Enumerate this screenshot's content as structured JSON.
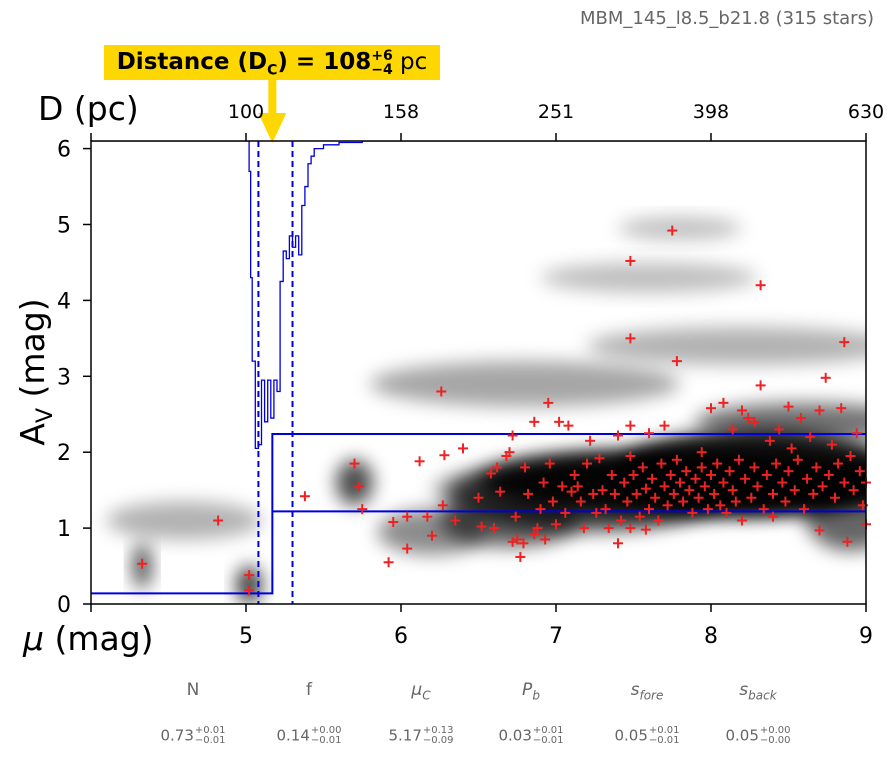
{
  "subtitle": "MBM_145_l8.5_b21.8 (315 stars)",
  "banner": {
    "prefix": "Distance (D",
    "sub": "C",
    "equals": ") = ",
    "value": "108",
    "plus": "+6",
    "minus": "−4",
    "unit": "pc",
    "color": "#FFD700"
  },
  "chart_data": {
    "type": "scatter",
    "xlabel": "μ (mag)",
    "ylabel": "A_V (mag)",
    "top_axis_label": "D (pc)",
    "xlim": [
      4.0,
      9.0
    ],
    "ylim": [
      0.0,
      6.1
    ],
    "x_ticks": [
      "5",
      "6",
      "7",
      "8",
      "9"
    ],
    "y_ticks": [
      "0",
      "1",
      "2",
      "3",
      "4",
      "5",
      "6"
    ],
    "top_ticks": [
      {
        "mu": 5.0,
        "label": "100"
      },
      {
        "mu": 6.0,
        "label": "158"
      },
      {
        "mu": 7.0,
        "label": "251"
      },
      {
        "mu": 8.0,
        "label": "398"
      },
      {
        "mu": 9.0,
        "label": "630"
      }
    ],
    "colors": {
      "stars": "#ee2222",
      "model": "#0000dd",
      "density": "#000000"
    },
    "model_line": {
      "x": [
        4.0,
        5.17,
        5.17,
        9.0
      ],
      "y": [
        0.14,
        0.14,
        2.24,
        2.24
      ],
      "lower_y": 1.22
    },
    "distance_markers": {
      "mu_c": 5.17,
      "mu_low": 5.08,
      "mu_high": 5.3
    },
    "stars": [
      [
        4.33,
        0.53
      ],
      [
        4.82,
        1.1
      ],
      [
        5.02,
        0.38
      ],
      [
        5.02,
        0.18
      ],
      [
        5.38,
        1.42
      ],
      [
        5.7,
        1.85
      ],
      [
        5.73,
        1.55
      ],
      [
        5.75,
        1.25
      ],
      [
        5.92,
        0.55
      ],
      [
        5.95,
        1.08
      ],
      [
        6.04,
        0.73
      ],
      [
        6.04,
        1.15
      ],
      [
        6.12,
        1.88
      ],
      [
        6.17,
        1.15
      ],
      [
        6.2,
        0.9
      ],
      [
        6.26,
        2.8
      ],
      [
        6.27,
        1.3
      ],
      [
        6.28,
        1.96
      ],
      [
        6.35,
        1.1
      ],
      [
        6.4,
        2.05
      ],
      [
        6.5,
        1.4
      ],
      [
        6.52,
        1.02
      ],
      [
        6.58,
        1.72
      ],
      [
        6.6,
        1.0
      ],
      [
        6.62,
        1.8
      ],
      [
        6.64,
        1.48
      ],
      [
        6.68,
        1.95
      ],
      [
        6.7,
        2.0
      ],
      [
        6.72,
        0.82
      ],
      [
        6.72,
        2.22
      ],
      [
        6.74,
        1.15
      ],
      [
        6.75,
        0.85
      ],
      [
        6.77,
        0.62
      ],
      [
        6.79,
        0.8
      ],
      [
        6.8,
        1.8
      ],
      [
        6.82,
        1.45
      ],
      [
        6.86,
        2.4
      ],
      [
        6.88,
        1.0
      ],
      [
        6.9,
        1.25
      ],
      [
        6.92,
        1.6
      ],
      [
        6.93,
        0.85
      ],
      [
        6.95,
        2.65
      ],
      [
        6.96,
        1.85
      ],
      [
        6.98,
        1.35
      ],
      [
        7.0,
        1.05
      ],
      [
        7.02,
        2.4
      ],
      [
        7.04,
        1.55
      ],
      [
        7.06,
        1.2
      ],
      [
        7.08,
        2.35
      ],
      [
        7.1,
        1.48
      ],
      [
        7.12,
        1.7
      ],
      [
        7.14,
        1.55
      ],
      [
        7.16,
        1.35
      ],
      [
        7.18,
        1.0
      ],
      [
        7.2,
        1.85
      ],
      [
        7.22,
        2.15
      ],
      [
        7.24,
        1.45
      ],
      [
        7.26,
        1.2
      ],
      [
        7.28,
        1.92
      ],
      [
        7.3,
        1.5
      ],
      [
        7.32,
        1.25
      ],
      [
        7.34,
        1.0
      ],
      [
        7.36,
        1.7
      ],
      [
        7.38,
        1.45
      ],
      [
        7.4,
        0.8
      ],
      [
        7.4,
        2.22
      ],
      [
        7.42,
        1.1
      ],
      [
        7.44,
        1.6
      ],
      [
        7.46,
        1.35
      ],
      [
        7.48,
        1.0
      ],
      [
        7.48,
        1.95
      ],
      [
        7.48,
        2.35
      ],
      [
        7.48,
        4.52
      ],
      [
        7.48,
        3.5
      ],
      [
        7.5,
        1.7
      ],
      [
        7.52,
        1.45
      ],
      [
        7.54,
        1.15
      ],
      [
        7.56,
        1.8
      ],
      [
        7.58,
        1.52
      ],
      [
        7.6,
        2.25
      ],
      [
        7.6,
        1.25
      ],
      [
        7.62,
        1.65
      ],
      [
        7.64,
        1.4
      ],
      [
        7.66,
        1.1
      ],
      [
        7.68,
        1.85
      ],
      [
        7.7,
        1.55
      ],
      [
        7.7,
        2.35
      ],
      [
        7.72,
        1.3
      ],
      [
        7.74,
        1.7
      ],
      [
        7.75,
        4.92
      ],
      [
        7.76,
        1.45
      ],
      [
        7.78,
        3.2
      ],
      [
        7.78,
        1.9
      ],
      [
        7.8,
        1.6
      ],
      [
        7.82,
        1.35
      ],
      [
        7.84,
        1.75
      ],
      [
        7.86,
        1.5
      ],
      [
        7.88,
        1.2
      ],
      [
        7.9,
        1.65
      ],
      [
        7.92,
        1.4
      ],
      [
        7.94,
        1.8
      ],
      [
        7.96,
        1.55
      ],
      [
        7.98,
        1.25
      ],
      [
        8.0,
        2.58
      ],
      [
        8.0,
        1.7
      ],
      [
        8.02,
        1.45
      ],
      [
        8.04,
        1.85
      ],
      [
        8.06,
        1.3
      ],
      [
        8.08,
        2.65
      ],
      [
        8.08,
        1.6
      ],
      [
        8.1,
        1.2
      ],
      [
        8.12,
        1.75
      ],
      [
        8.14,
        1.5
      ],
      [
        8.16,
        1.35
      ],
      [
        8.18,
        1.9
      ],
      [
        8.2,
        1.1
      ],
      [
        8.2,
        2.55
      ],
      [
        8.22,
        1.65
      ],
      [
        8.24,
        2.45
      ],
      [
        8.26,
        1.4
      ],
      [
        8.28,
        2.4
      ],
      [
        8.28,
        1.8
      ],
      [
        8.3,
        1.55
      ],
      [
        8.32,
        2.88
      ],
      [
        8.32,
        4.2
      ],
      [
        8.34,
        1.25
      ],
      [
        8.36,
        1.7
      ],
      [
        8.38,
        2.15
      ],
      [
        8.4,
        1.45
      ],
      [
        8.42,
        1.85
      ],
      [
        8.44,
        2.3
      ],
      [
        8.46,
        1.6
      ],
      [
        8.48,
        1.35
      ],
      [
        8.5,
        2.6
      ],
      [
        8.5,
        1.75
      ],
      [
        8.52,
        2.05
      ],
      [
        8.54,
        1.5
      ],
      [
        8.56,
        1.9
      ],
      [
        8.58,
        2.45
      ],
      [
        8.6,
        1.25
      ],
      [
        8.62,
        1.65
      ],
      [
        8.64,
        2.2
      ],
      [
        8.66,
        1.45
      ],
      [
        8.68,
        1.8
      ],
      [
        8.7,
        0.97
      ],
      [
        8.7,
        2.55
      ],
      [
        8.72,
        1.55
      ],
      [
        8.74,
        2.98
      ],
      [
        8.76,
        1.7
      ],
      [
        8.78,
        2.1
      ],
      [
        8.8,
        1.4
      ],
      [
        8.82,
        1.85
      ],
      [
        8.84,
        2.58
      ],
      [
        8.86,
        3.45
      ],
      [
        8.86,
        1.6
      ],
      [
        8.88,
        0.82
      ],
      [
        8.9,
        1.95
      ],
      [
        8.92,
        1.5
      ],
      [
        8.94,
        2.25
      ],
      [
        8.96,
        1.75
      ],
      [
        8.98,
        1.3
      ],
      [
        9.0,
        1.05
      ],
      [
        9.0,
        1.6
      ],
      [
        6.86,
        0.92
      ],
      [
        7.58,
        0.98
      ],
      [
        8.14,
        2.3
      ],
      [
        7.94,
        2.0
      ],
      [
        8.4,
        1.15
      ]
    ]
  },
  "parameters": [
    {
      "name": "N",
      "italic": false,
      "value": "0.73",
      "plus": "+0.01",
      "minus": "−0.01"
    },
    {
      "name": "f",
      "italic": false,
      "value": "0.14",
      "plus": "+0.00",
      "minus": "−0.01"
    },
    {
      "name": "μC",
      "italic": true,
      "value": "5.17",
      "plus": "+0.13",
      "minus": "−0.09"
    },
    {
      "name": "Pb",
      "italic": true,
      "value": "0.03",
      "plus": "+0.01",
      "minus": "−0.01"
    },
    {
      "name": "sfore",
      "italic": true,
      "value": "0.05",
      "plus": "+0.01",
      "minus": "−0.01"
    },
    {
      "name": "sback",
      "italic": true,
      "value": "0.05",
      "plus": "+0.00",
      "minus": "−0.00"
    }
  ]
}
